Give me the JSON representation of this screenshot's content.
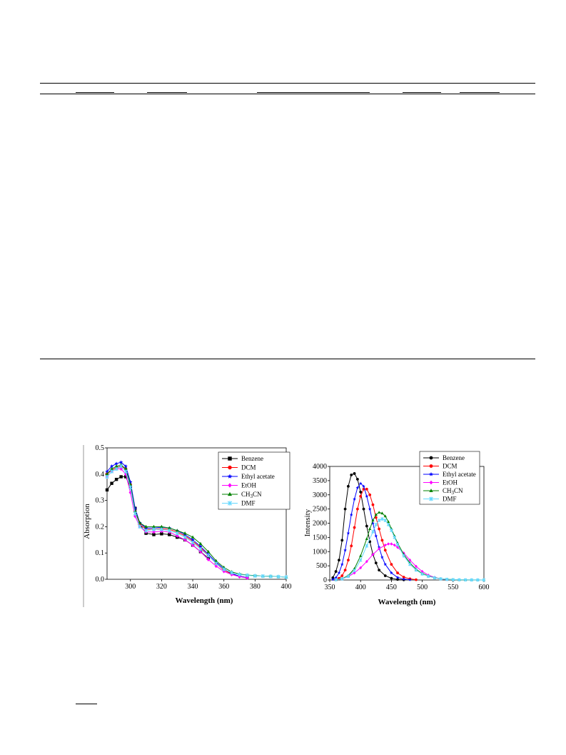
{
  "chart_data": [
    {
      "type": "line",
      "title": "",
      "xlabel": "Wavelength (nm)",
      "ylabel": "Absorption",
      "xlim": [
        285,
        400
      ],
      "ylim": [
        0,
        0.5
      ],
      "xticks": [
        300,
        320,
        340,
        360,
        380,
        400
      ],
      "yticks": [
        0.0,
        0.1,
        0.2,
        0.3,
        0.4,
        0.5
      ],
      "ytick_labels": [
        "0.0",
        "0.1",
        "0.2",
        "0.3",
        "0.4",
        "0.5"
      ],
      "grid": false,
      "legend_position": "top-right",
      "series": [
        {
          "name": "Benzene",
          "color": "#000000",
          "marker": "square",
          "x": [
            285,
            288,
            291,
            294,
            297,
            300,
            303,
            306,
            310,
            315,
            320,
            325,
            330,
            335,
            340,
            345,
            350
          ],
          "y": [
            0.34,
            0.365,
            0.38,
            0.39,
            0.39,
            0.35,
            0.27,
            0.21,
            0.175,
            0.17,
            0.173,
            0.17,
            0.16,
            0.15,
            0.13,
            0.105,
            0.08
          ]
        },
        {
          "name": "DCM",
          "color": "#ff0000",
          "marker": "circle",
          "x": [
            285,
            288,
            291,
            294,
            297,
            300,
            303,
            306,
            310,
            315,
            320,
            325,
            330,
            335,
            340,
            345,
            350,
            355,
            360,
            365,
            370,
            375
          ],
          "y": [
            0.4,
            0.415,
            0.425,
            0.43,
            0.42,
            0.36,
            0.26,
            0.21,
            0.19,
            0.19,
            0.193,
            0.19,
            0.18,
            0.165,
            0.145,
            0.12,
            0.09,
            0.06,
            0.035,
            0.02,
            0.012,
            0.006
          ]
        },
        {
          "name": "Ethyl acetate",
          "color": "#0000ff",
          "marker": "star",
          "x": [
            285,
            288,
            291,
            294,
            297,
            300,
            303,
            306,
            310,
            315,
            320,
            325,
            330,
            335,
            340,
            345,
            350,
            355,
            360,
            365,
            370,
            375
          ],
          "y": [
            0.41,
            0.43,
            0.44,
            0.445,
            0.43,
            0.37,
            0.27,
            0.215,
            0.195,
            0.195,
            0.198,
            0.195,
            0.185,
            0.17,
            0.15,
            0.125,
            0.095,
            0.065,
            0.04,
            0.022,
            0.012,
            0.006
          ]
        },
        {
          "name": "EtOH",
          "color": "#ff00ff",
          "marker": "diamond",
          "x": [
            285,
            288,
            291,
            294,
            297,
            300,
            303,
            306,
            310,
            315,
            320,
            325,
            330,
            335,
            340,
            345,
            350,
            355,
            360,
            365,
            370,
            375
          ],
          "y": [
            0.39,
            0.41,
            0.42,
            0.42,
            0.4,
            0.33,
            0.24,
            0.2,
            0.18,
            0.18,
            0.183,
            0.18,
            0.165,
            0.15,
            0.13,
            0.105,
            0.075,
            0.05,
            0.03,
            0.018,
            0.01,
            0.005
          ]
        },
        {
          "name": "CH3CN",
          "color": "#008000",
          "marker": "triangle",
          "x": [
            285,
            288,
            291,
            294,
            297,
            300,
            303,
            306,
            310,
            315,
            320,
            325,
            330,
            335,
            340,
            345,
            350,
            355,
            360,
            365,
            370,
            375,
            380,
            385,
            390,
            395,
            400
          ],
          "y": [
            0.4,
            0.42,
            0.43,
            0.435,
            0.42,
            0.36,
            0.26,
            0.215,
            0.2,
            0.2,
            0.2,
            0.195,
            0.185,
            0.175,
            0.16,
            0.135,
            0.105,
            0.07,
            0.045,
            0.028,
            0.02,
            0.016,
            0.014,
            0.012,
            0.012,
            0.01,
            0.008
          ]
        },
        {
          "name": "DMF",
          "color": "#66d9ff",
          "marker": "cross",
          "x": [
            285,
            288,
            291,
            294,
            297,
            300,
            303,
            306,
            310,
            315,
            320,
            325,
            330,
            335,
            340,
            345,
            350,
            355,
            360,
            365,
            370,
            375,
            380,
            385,
            390,
            395,
            400
          ],
          "y": [
            0.39,
            0.41,
            0.42,
            0.43,
            0.41,
            0.35,
            0.25,
            0.2,
            0.185,
            0.19,
            0.19,
            0.185,
            0.175,
            0.16,
            0.14,
            0.115,
            0.09,
            0.06,
            0.038,
            0.025,
            0.018,
            0.015,
            0.013,
            0.012,
            0.011,
            0.01,
            0.008
          ]
        }
      ]
    },
    {
      "type": "line",
      "title": "",
      "xlabel": "Wavelength (nm)",
      "ylabel": "Intensity",
      "xlim": [
        350,
        600
      ],
      "ylim": [
        0,
        4000
      ],
      "xticks": [
        350,
        400,
        450,
        500,
        550,
        600
      ],
      "yticks": [
        0,
        500,
        1000,
        1500,
        2000,
        2500,
        3000,
        3500,
        4000
      ],
      "grid": false,
      "legend_position": "top-right",
      "series": [
        {
          "name": "Benzene",
          "color": "#000000",
          "marker": "circle",
          "x": [
            355,
            360,
            365,
            370,
            375,
            380,
            385,
            390,
            395,
            400,
            405,
            410,
            415,
            420,
            425,
            430,
            440,
            450,
            460,
            470
          ],
          "y": [
            80,
            300,
            700,
            1400,
            2500,
            3300,
            3700,
            3750,
            3550,
            3100,
            2500,
            1900,
            1350,
            900,
            600,
            350,
            150,
            60,
            20,
            5
          ]
        },
        {
          "name": "DCM",
          "color": "#ff0000",
          "marker": "circle",
          "x": [
            360,
            365,
            370,
            375,
            380,
            385,
            390,
            395,
            400,
            405,
            410,
            415,
            420,
            425,
            430,
            435,
            440,
            450,
            460,
            470,
            480,
            490
          ],
          "y": [
            20,
            60,
            150,
            350,
            700,
            1200,
            1850,
            2500,
            2950,
            3200,
            3200,
            3000,
            2650,
            2200,
            1800,
            1400,
            1050,
            550,
            250,
            100,
            40,
            10
          ]
        },
        {
          "name": "Ethyl acetate",
          "color": "#0000ff",
          "marker": "star",
          "x": [
            355,
            360,
            365,
            370,
            375,
            380,
            385,
            390,
            395,
            400,
            405,
            410,
            415,
            420,
            425,
            430,
            435,
            440,
            450,
            460,
            470,
            480
          ],
          "y": [
            20,
            80,
            250,
            550,
            1050,
            1650,
            2300,
            2850,
            3250,
            3400,
            3300,
            2950,
            2500,
            2000,
            1550,
            1150,
            800,
            550,
            250,
            90,
            30,
            10
          ]
        },
        {
          "name": "EtOH",
          "color": "#ff00ff",
          "marker": "diamond",
          "x": [
            360,
            370,
            380,
            390,
            400,
            410,
            420,
            430,
            440,
            445,
            450,
            455,
            460,
            470,
            480,
            490,
            500,
            510,
            520,
            530,
            540
          ],
          "y": [
            10,
            40,
            120,
            250,
            430,
            650,
            900,
            1100,
            1230,
            1270,
            1270,
            1230,
            1150,
            950,
            700,
            480,
            300,
            170,
            90,
            40,
            15
          ]
        },
        {
          "name": "CH3CN",
          "color": "#008000",
          "marker": "triangle",
          "x": [
            360,
            370,
            380,
            390,
            400,
            410,
            415,
            420,
            425,
            430,
            435,
            440,
            445,
            450,
            455,
            460,
            470,
            480,
            490,
            500,
            510,
            520,
            530,
            540,
            550,
            560,
            570,
            580,
            590,
            600
          ],
          "y": [
            10,
            50,
            150,
            400,
            850,
            1450,
            1800,
            2100,
            2300,
            2380,
            2350,
            2250,
            2050,
            1800,
            1550,
            1300,
            900,
            600,
            380,
            230,
            140,
            80,
            45,
            25,
            15,
            8,
            5,
            3,
            2,
            1
          ]
        },
        {
          "name": "DMF",
          "color": "#66d9ff",
          "marker": "cross",
          "x": [
            360,
            370,
            380,
            390,
            400,
            410,
            420,
            425,
            430,
            435,
            440,
            445,
            450,
            455,
            460,
            470,
            480,
            490,
            500,
            510,
            520,
            530,
            540,
            550,
            560,
            570,
            580,
            590,
            600
          ],
          "y": [
            10,
            40,
            130,
            330,
            700,
            1200,
            1700,
            1950,
            2100,
            2150,
            2100,
            1950,
            1750,
            1500,
            1250,
            850,
            550,
            350,
            210,
            130,
            75,
            40,
            22,
            12,
            7,
            4,
            3,
            2,
            1
          ]
        }
      ]
    }
  ]
}
